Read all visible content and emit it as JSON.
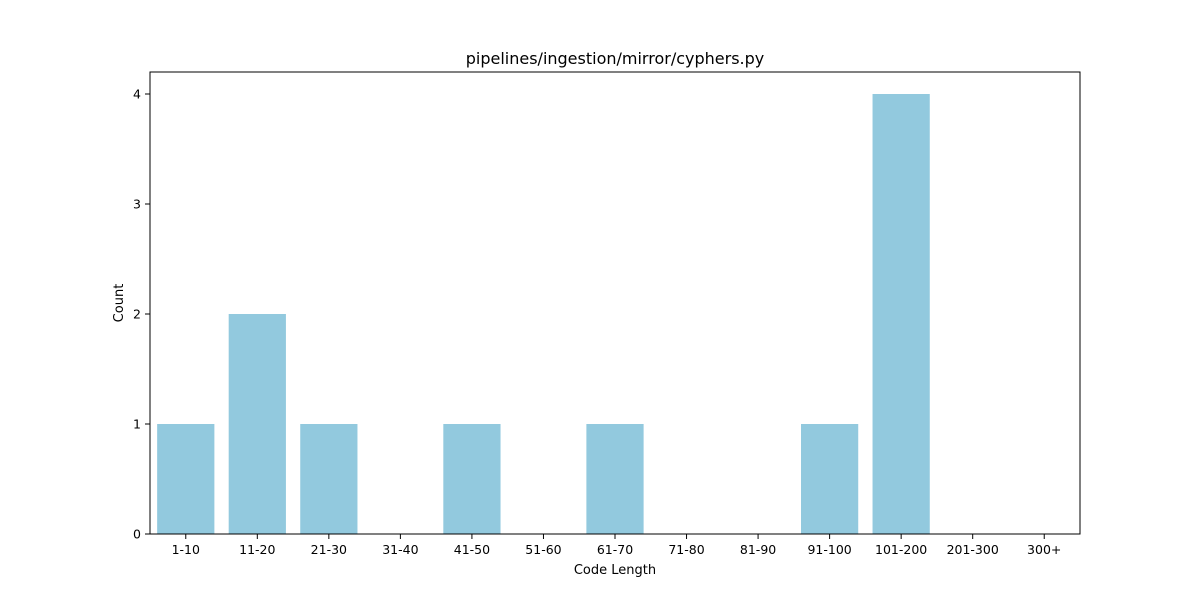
{
  "chart_data": {
    "type": "bar",
    "title": "pipelines/ingestion/mirror/cyphers.py",
    "xlabel": "Code Length",
    "ylabel": "Count",
    "categories": [
      "1-10",
      "11-20",
      "21-30",
      "31-40",
      "41-50",
      "51-60",
      "61-70",
      "71-80",
      "81-90",
      "91-100",
      "101-200",
      "201-300",
      "300+"
    ],
    "values": [
      1,
      2,
      1,
      0,
      1,
      0,
      1,
      0,
      0,
      1,
      4,
      0,
      0
    ],
    "ylim": [
      0,
      4.2
    ],
    "yticks": [
      0,
      1,
      2,
      3,
      4
    ],
    "grid": false,
    "legend": "none",
    "bar_color": "#92c9de"
  }
}
